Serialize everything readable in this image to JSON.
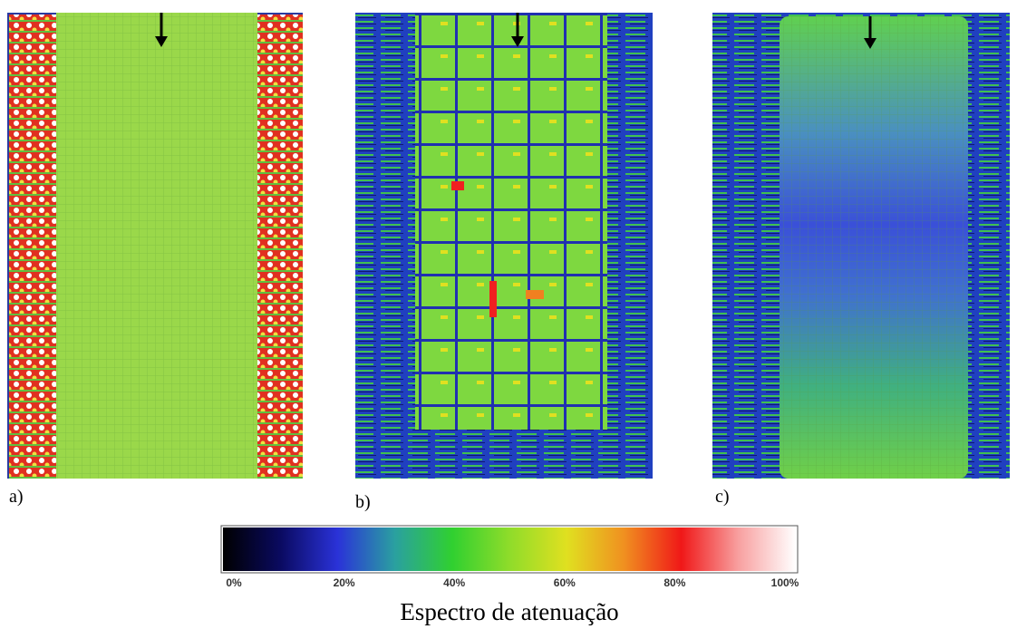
{
  "panels": [
    {
      "label": "a)"
    },
    {
      "label": "b)"
    },
    {
      "label": "c)"
    }
  ],
  "colorbar": {
    "ticks": [
      "0%",
      "20%",
      "40%",
      "60%",
      "80%",
      "100%"
    ],
    "title": "Espectro de atenuação"
  }
}
